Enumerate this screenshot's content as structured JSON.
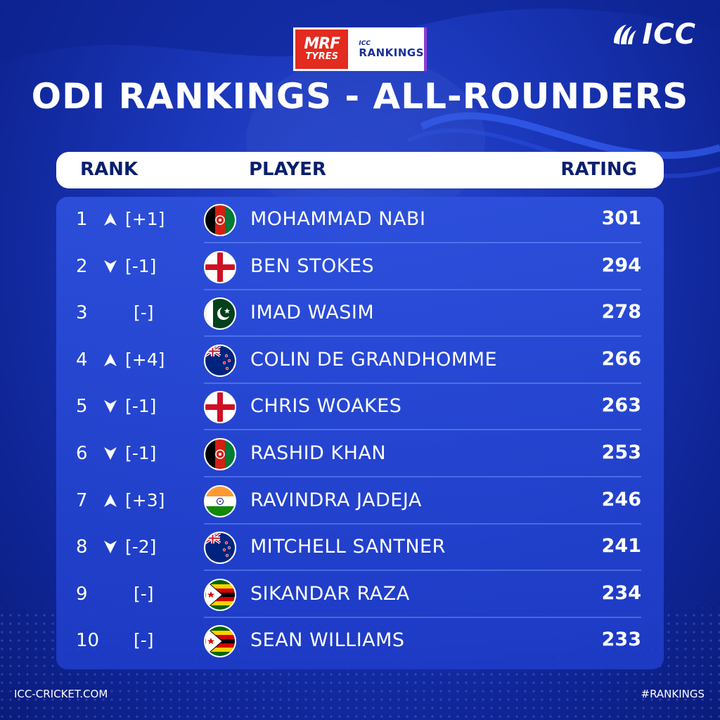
{
  "sponsor": {
    "mrf_line1": "MRF",
    "mrf_line2": "TYRES",
    "icc_small": "ICC",
    "rankings": "RANKINGS"
  },
  "brand": {
    "logo_text": "ICC"
  },
  "title": "ODI RANKINGS - ALL-ROUNDERS",
  "headers": {
    "rank": "RANK",
    "player": "PLAYER",
    "rating": "RATING"
  },
  "rows": [
    {
      "rank": "1",
      "direction": "up",
      "movement": "[+1]",
      "flag": "afghanistan",
      "player": "MOHAMMAD NABI",
      "rating": "301"
    },
    {
      "rank": "2",
      "direction": "down",
      "movement": "[-1]",
      "flag": "england",
      "player": "BEN STOKES",
      "rating": "294"
    },
    {
      "rank": "3",
      "direction": "none",
      "movement": "[-]",
      "flag": "pakistan",
      "player": "IMAD WASIM",
      "rating": "278"
    },
    {
      "rank": "4",
      "direction": "up",
      "movement": "[+4]",
      "flag": "new-zealand",
      "player": "COLIN DE GRANDHOMME",
      "rating": "266"
    },
    {
      "rank": "5",
      "direction": "down",
      "movement": "[-1]",
      "flag": "england",
      "player": "CHRIS WOAKES",
      "rating": "263"
    },
    {
      "rank": "6",
      "direction": "down",
      "movement": "[-1]",
      "flag": "afghanistan",
      "player": "RASHID KHAN",
      "rating": "253"
    },
    {
      "rank": "7",
      "direction": "up",
      "movement": "[+3]",
      "flag": "india",
      "player": "RAVINDRA JADEJA",
      "rating": "246"
    },
    {
      "rank": "8",
      "direction": "down",
      "movement": "[-2]",
      "flag": "new-zealand",
      "player": "MITCHELL SANTNER",
      "rating": "241"
    },
    {
      "rank": "9",
      "direction": "none",
      "movement": "[-]",
      "flag": "zimbabwe",
      "player": "SIKANDAR RAZA",
      "rating": "234"
    },
    {
      "rank": "10",
      "direction": "none",
      "movement": "[-]",
      "flag": "zimbabwe",
      "player": "SEAN WILLIAMS",
      "rating": "233"
    }
  ],
  "footer": {
    "website": "ICC-CRICKET.COM",
    "hashtag": "#RANKINGS"
  },
  "colors": {
    "accent": "#1a36b8",
    "header_text": "#0b1f6e",
    "mrf_red": "#e32b1f"
  }
}
